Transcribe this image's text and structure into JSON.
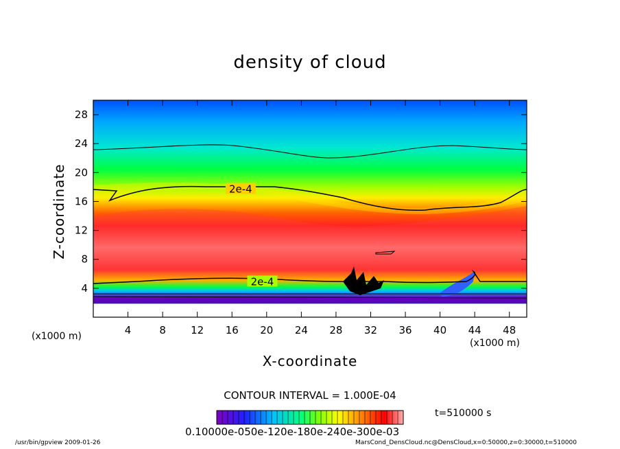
{
  "chart_data": {
    "type": "heatmap",
    "title": "density of cloud",
    "xlabel": "X-coordinate",
    "ylabel": "Z-coordinate",
    "x_unit": "(x1000 m)",
    "xlim": [
      0,
      50
    ],
    "ylim": [
      0,
      30
    ],
    "x_ticks": [
      4,
      8,
      12,
      16,
      20,
      24,
      28,
      32,
      36,
      40,
      44,
      48
    ],
    "y_ticks": [
      4,
      8,
      12,
      16,
      20,
      24,
      28
    ],
    "contour_labels": [
      "2e-4",
      "2e-4"
    ],
    "contour_interval": "CONTOUR INTERVAL = 1.000E-04",
    "time": "t=510000 s",
    "colorbar_tick_text": "0.10000e-050e-120e-180e-240e-300e-03",
    "colorscale": [
      "#8000c0",
      "#0000ff",
      "#00c0ff",
      "#00ff80",
      "#00ff00",
      "#ffff00",
      "#ff8000",
      "#ff0000",
      "#ffb0b0"
    ]
  },
  "footer": {
    "left": "/usr/bin/gpview   2009-01-26",
    "right": "MarsCond_DensCloud.nc@DensCloud,x=0:50000,z=0:30000,t=510000"
  }
}
